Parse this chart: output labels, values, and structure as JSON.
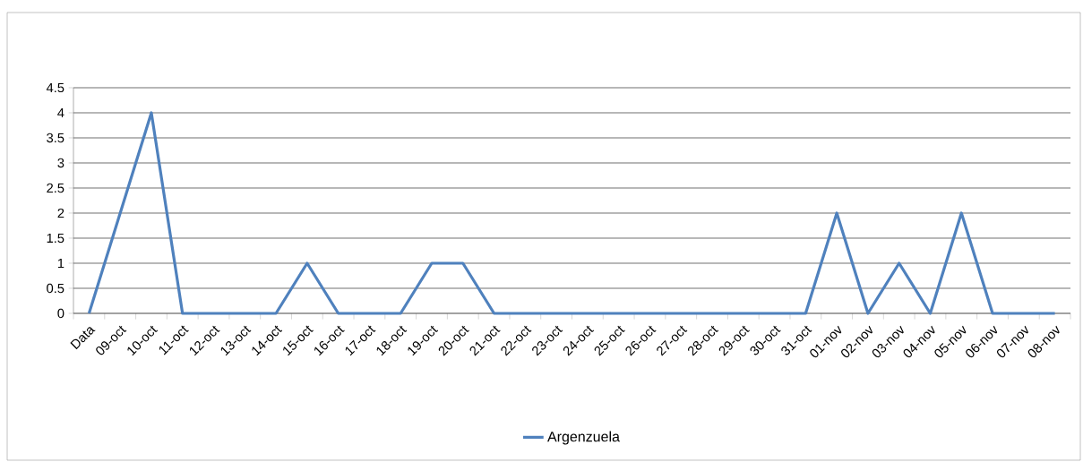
{
  "chart_data": {
    "type": "line",
    "categories": [
      "Data",
      "09-oct",
      "10-oct",
      "11-oct",
      "12-oct",
      "13-oct",
      "14-oct",
      "15-oct",
      "16-oct",
      "17-oct",
      "18-oct",
      "19-oct",
      "20-oct",
      "21-oct",
      "22-oct",
      "23-oct",
      "24-oct",
      "25-oct",
      "26-oct",
      "27-oct",
      "28-oct",
      "29-oct",
      "30-oct",
      "31-oct",
      "01-nov",
      "02-nov",
      "03-nov",
      "04-nov",
      "05-nov",
      "06-nov",
      "07-nov",
      "08-nov"
    ],
    "series": [
      {
        "name": "Argenzuela",
        "color": "#4f81bd",
        "values": [
          0,
          2,
          4,
          0,
          0,
          0,
          0,
          1,
          0,
          0,
          0,
          1,
          1,
          0,
          0,
          0,
          0,
          0,
          0,
          0,
          0,
          0,
          0,
          0,
          2,
          0,
          1,
          0,
          2,
          0,
          0,
          0
        ]
      }
    ],
    "ylim": [
      0,
      4.5
    ],
    "yticks": [
      0,
      0.5,
      1,
      1.5,
      2,
      2.5,
      3,
      3.5,
      4,
      4.5
    ],
    "grid": "y",
    "legend": "bottom",
    "marker": "none",
    "line_style": "solid"
  }
}
